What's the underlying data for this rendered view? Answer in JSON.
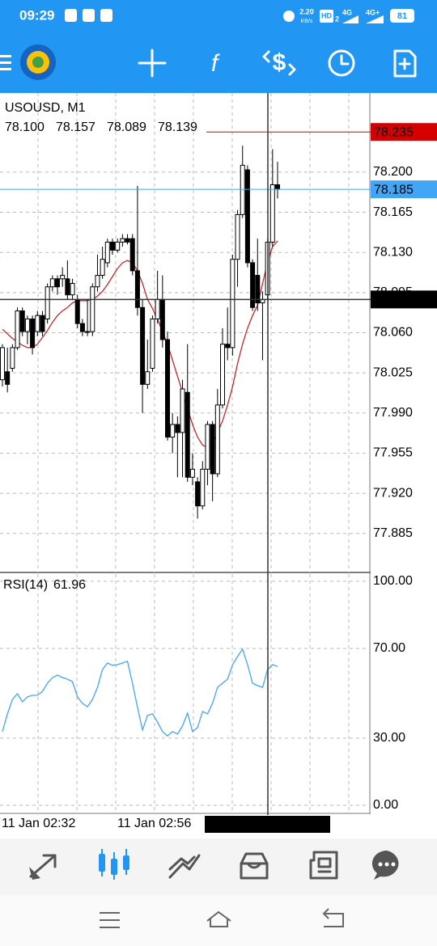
{
  "status_bar": {
    "time": "09:29",
    "net_speed": "2.20",
    "net_unit": "KB/s",
    "hd": "HD",
    "sim": "2",
    "signal_1": "4G",
    "signal_2": "4G+",
    "battery": "81"
  },
  "toolbar": {
    "indicators": "f"
  },
  "chart_data": [
    {
      "type": "candlestick",
      "title": "USOUSD, M1",
      "info_ohlc": [
        {
          "value": 78.1,
          "label": "78.100"
        },
        78.157,
        78.089,
        78.139
      ],
      "open": [
        78.019,
        78.026,
        78.029,
        78.047,
        78.079,
        78.061,
        78.072,
        78.061,
        78.075,
        78.072,
        78.1,
        78.107,
        78.107,
        78.107,
        78.093,
        78.089,
        78.068,
        78.061,
        78.061,
        78.1,
        78.11,
        78.121,
        78.139,
        78.132,
        78.139,
        78.142,
        78.142,
        78.114,
        78.082,
        78.015,
        78.029,
        78.072,
        78.089,
        78.054,
        77.969,
        77.98,
        77.973,
        78.008,
        77.934,
        77.93,
        77.909,
        77.941,
        77.98,
        77.937,
        77.997,
        78.05,
        78.047,
        78.124,
        78.163,
        78.202,
        78.121,
        78.11,
        78.086,
        78.093,
        78.139,
        78.189
      ],
      "high": [
        78.05,
        78.047,
        78.05,
        78.082,
        78.082,
        78.075,
        78.075,
        78.079,
        78.079,
        78.103,
        78.11,
        78.11,
        78.117,
        78.123,
        78.107,
        78.093,
        78.072,
        78.089,
        78.103,
        78.128,
        78.135,
        78.142,
        78.142,
        78.142,
        78.146,
        78.146,
        78.146,
        78.188,
        78.089,
        78.054,
        78.075,
        78.114,
        78.11,
        78.061,
        77.99,
        77.987,
        78.019,
        78.05,
        77.955,
        77.934,
        77.948,
        77.983,
        77.983,
        78.011,
        78.064,
        78.082,
        78.128,
        78.167,
        78.223,
        78.206,
        78.124,
        78.142,
        78.096,
        78.142,
        78.22,
        78.209
      ],
      "low": [
        78.013,
        78.008,
        78.026,
        78.045,
        78.057,
        78.05,
        78.041,
        78.057,
        78.057,
        78.068,
        78.096,
        78.093,
        78.1,
        78.089,
        78.089,
        78.064,
        78.057,
        78.057,
        78.057,
        78.096,
        78.107,
        78.117,
        78.128,
        78.13,
        78.135,
        78.137,
        78.11,
        78.075,
        77.99,
        78.011,
        78.026,
        78.068,
        78.047,
        77.966,
        77.955,
        77.934,
        77.934,
        77.93,
        77.927,
        77.898,
        77.906,
        77.927,
        77.913,
        77.934,
        77.994,
        78.036,
        78.04,
        78.1,
        78.16,
        78.117,
        78.079,
        78.079,
        78.036,
        78.089,
        78.135,
        78.177
      ],
      "close": [
        78.047,
        78.015,
        78.047,
        78.079,
        78.061,
        78.072,
        78.047,
        78.075,
        78.061,
        78.1,
        78.107,
        78.1,
        78.11,
        78.093,
        78.103,
        78.068,
        78.061,
        78.061,
        78.1,
        78.11,
        78.124,
        78.139,
        78.132,
        78.139,
        78.142,
        78.139,
        78.114,
        78.082,
        78.015,
        78.026,
        78.072,
        78.089,
        78.054,
        77.969,
        77.98,
        77.973,
        78.011,
        77.934,
        77.941,
        77.909,
        77.941,
        77.98,
        77.937,
        77.997,
        78.05,
        78.047,
        78.124,
        78.163,
        78.206,
        78.121,
        78.082,
        78.086,
        78.089,
        78.139,
        78.189,
        78.185
      ],
      "ma_values": [
        78.063,
        78.059,
        78.055,
        78.052,
        78.049,
        78.047,
        78.047,
        78.05,
        78.056,
        78.062,
        78.069,
        78.075,
        78.079,
        78.082,
        78.086,
        78.088,
        78.088,
        78.088,
        78.089,
        78.092,
        78.096,
        78.102,
        78.109,
        78.116,
        78.121,
        78.123,
        78.121,
        78.114,
        78.103,
        78.089,
        78.081,
        78.072,
        78.061,
        78.05,
        78.036,
        78.022,
        78.008,
        77.994,
        77.98,
        77.969,
        77.962,
        77.96,
        77.963,
        77.973,
        77.983,
        77.997,
        78.013,
        78.033,
        78.05,
        78.064,
        78.075,
        78.084,
        78.103,
        78.121,
        78.135,
        78.14
      ],
      "ma_color": "#c62828",
      "up_color": "#ffffff",
      "down_color": "#000000",
      "ylim": [
        77.851,
        78.269
      ],
      "yticks": [
        {
          "value": 78.2,
          "label": "78.200"
        },
        78.165,
        {
          "value": 78.13,
          "label": "78.130"
        },
        78.095,
        {
          "value": 78.06,
          "label": "78.060"
        },
        78.025,
        {
          "value": 77.99,
          "label": "77.990"
        },
        77.955,
        {
          "value": 77.92,
          "label": "77.920"
        },
        77.885
      ],
      "grid": true,
      "price_lines": [
        {
          "value": 78.235,
          "color": "#d50000"
        },
        {
          "value": 78.185,
          "color": "#42a5f5"
        }
      ],
      "crosshair": {
        "price": 78.089,
        "time": "2022.01.11 03:27"
      },
      "time_labels": [
        "11 Jan 02:32",
        "11 Jan 02:56"
      ]
    },
    {
      "type": "line",
      "title": "RSI(14)",
      "last_value": 61.96,
      "values": [
        32.9,
        40.8,
        47.3,
        49.8,
        46.2,
        48.4,
        49.1,
        49.1,
        50.9,
        54.5,
        57.0,
        58.1,
        57.0,
        56.3,
        55.2,
        48.4,
        45.5,
        44.0,
        47.3,
        52.7,
        60.6,
        63.5,
        62.5,
        62.8,
        63.5,
        64.3,
        54.5,
        43.7,
        33.6,
        40.1,
        40.8,
        37.2,
        32.9,
        31.0,
        32.9,
        31.8,
        35.4,
        41.2,
        32.9,
        34.7,
        41.9,
        40.8,
        45.5,
        52.7,
        54.5,
        56.3,
        62.8,
        66.4,
        69.7,
        62.8,
        54.5,
        53.4,
        52.7,
        60.6,
        62.8,
        61.96
      ],
      "color": "#42a5f5",
      "ylim": [
        -3.6,
        103.2
      ],
      "yticks": [
        {
          "value": 100,
          "label": "100.00"
        },
        {
          "value": 70,
          "label": "70.00"
        },
        {
          "value": 30,
          "label": "30.00"
        },
        {
          "value": 0,
          "label": "0.00"
        }
      ],
      "grid": true
    }
  ]
}
